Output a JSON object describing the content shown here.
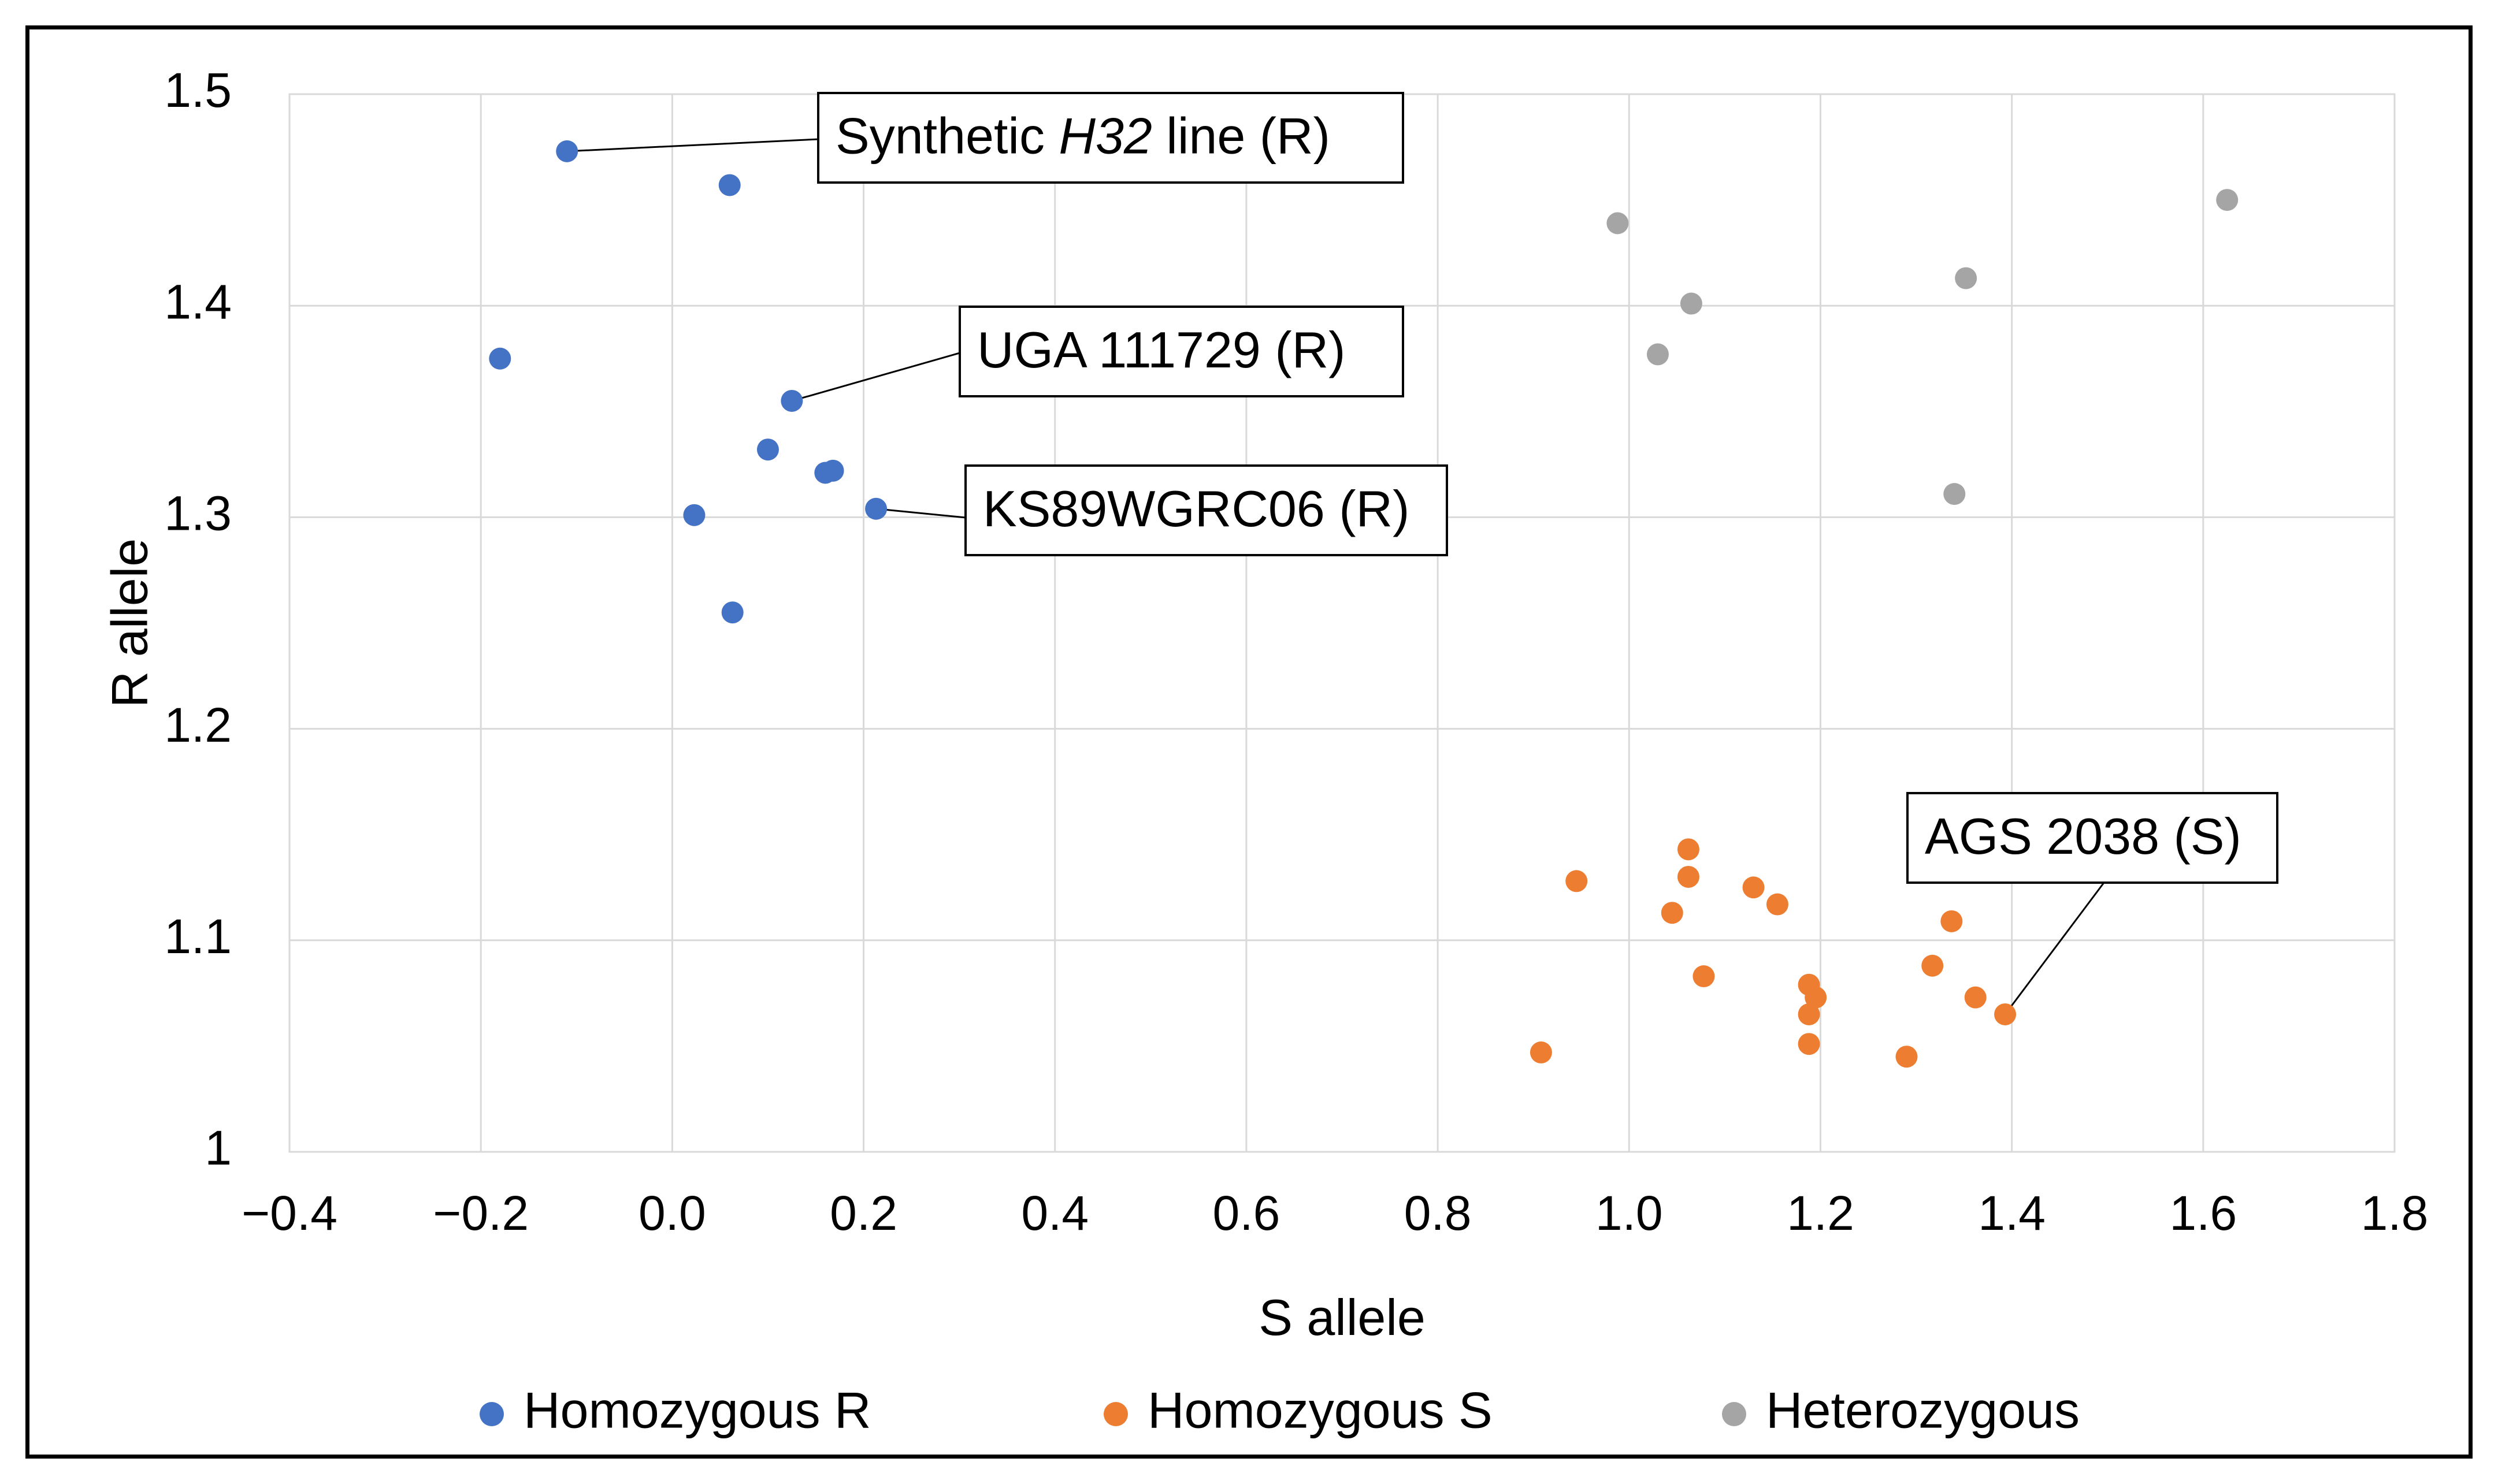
{
  "chart_data": {
    "type": "scatter",
    "title": "",
    "xlabel": "S allele",
    "ylabel": "R allele",
    "xlim": [
      -0.4,
      1.8
    ],
    "ylim": [
      1.0,
      1.5
    ],
    "xticks": [
      -0.4,
      -0.2,
      0.0,
      0.2,
      0.4,
      0.6,
      0.8,
      1.0,
      1.2,
      1.4,
      1.6,
      1.8
    ],
    "xtick_labels": [
      "−0.4",
      "−0.2",
      "0.0",
      "0.2",
      "0.4",
      "0.6",
      "0.8",
      "1.0",
      "1.2",
      "1.4",
      "1.6",
      "1.8"
    ],
    "yticks": [
      1.0,
      1.1,
      1.2,
      1.3,
      1.4,
      1.5
    ],
    "ytick_labels": [
      "1",
      "1.1",
      "1.2",
      "1.3",
      "1.4",
      "1.5"
    ],
    "grid": true,
    "legend_position": "bottom",
    "series": [
      {
        "name": "Homozygous R",
        "color": "#4472C4",
        "points": [
          [
            -0.11,
            1.473
          ],
          [
            0.06,
            1.457
          ],
          [
            -0.18,
            1.375
          ],
          [
            0.125,
            1.355
          ],
          [
            0.1,
            1.332
          ],
          [
            0.16,
            1.321
          ],
          [
            0.168,
            1.322
          ],
          [
            0.213,
            1.304
          ],
          [
            0.023,
            1.301
          ],
          [
            0.063,
            1.255
          ]
        ]
      },
      {
        "name": "Homozygous S",
        "color": "#ED7D31",
        "points": [
          [
            1.062,
            1.143
          ],
          [
            0.945,
            1.128
          ],
          [
            1.062,
            1.13
          ],
          [
            1.13,
            1.125
          ],
          [
            1.155,
            1.117
          ],
          [
            1.045,
            1.113
          ],
          [
            1.337,
            1.109
          ],
          [
            1.317,
            1.088
          ],
          [
            1.078,
            1.083
          ],
          [
            1.188,
            1.079
          ],
          [
            1.195,
            1.073
          ],
          [
            1.362,
            1.073
          ],
          [
            1.188,
            1.065
          ],
          [
            1.393,
            1.065
          ],
          [
            1.188,
            1.051
          ],
          [
            0.908,
            1.047
          ],
          [
            1.29,
            1.045
          ]
        ]
      },
      {
        "name": "Heterozygous",
        "color": "#A5A5A5",
        "points": [
          [
            1.625,
            1.45
          ],
          [
            0.988,
            1.439
          ],
          [
            1.352,
            1.413
          ],
          [
            1.065,
            1.401
          ],
          [
            1.03,
            1.377
          ],
          [
            1.34,
            1.311
          ]
        ]
      }
    ],
    "annotations": [
      {
        "id": "synthetic-h32",
        "text_before": "Synthetic ",
        "text_italic": "H32",
        "text_after": " line (R)",
        "point": [
          -0.11,
          1.473
        ]
      },
      {
        "id": "uga",
        "text": "UGA 111729 (R)",
        "point": [
          0.125,
          1.355
        ]
      },
      {
        "id": "ks89",
        "text": "KS89WGRC06 (R)",
        "point": [
          0.213,
          1.304
        ]
      },
      {
        "id": "ags",
        "text": "AGS 2038 (S)",
        "point": [
          1.393,
          1.065
        ]
      }
    ]
  }
}
